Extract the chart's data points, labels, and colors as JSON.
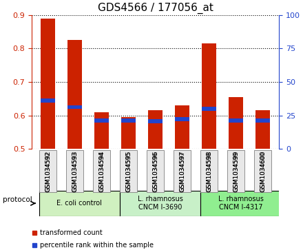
{
  "title": "GDS4566 / 177056_at",
  "samples": [
    "GSM1034592",
    "GSM1034593",
    "GSM1034594",
    "GSM1034595",
    "GSM1034596",
    "GSM1034597",
    "GSM1034598",
    "GSM1034599",
    "GSM1034600"
  ],
  "red_top": [
    0.89,
    0.825,
    0.61,
    0.595,
    0.615,
    0.63,
    0.815,
    0.655,
    0.615
  ],
  "blue_val": [
    0.645,
    0.625,
    0.585,
    0.585,
    0.583,
    0.59,
    0.62,
    0.585,
    0.585
  ],
  "bar_bottom": 0.5,
  "ylim": [
    0.5,
    0.9
  ],
  "yticks": [
    0.5,
    0.6,
    0.7,
    0.8,
    0.9
  ],
  "right_yticks": [
    0,
    25,
    50,
    75,
    100
  ],
  "right_ylim": [
    0,
    100
  ],
  "red_color": "#CC2200",
  "blue_color": "#2244CC",
  "title_fontsize": 11,
  "axis_label_fontsize": 8,
  "tick_fontsize": 8,
  "groups": [
    {
      "label": "E. coli control",
      "start": 0,
      "end": 3,
      "color": "#d0f0c0"
    },
    {
      "label": "L. rhamnosus\nCNCM I-3690",
      "start": 3,
      "end": 6,
      "color": "#c8f0c8"
    },
    {
      "label": "L. rhamnosus\nCNCM I-4317",
      "start": 6,
      "end": 9,
      "color": "#90ee90"
    }
  ],
  "protocol_label": "protocol",
  "legend_items": [
    {
      "color": "#CC2200",
      "label": "transformed count"
    },
    {
      "color": "#2244CC",
      "label": "percentile rank within the sample"
    }
  ],
  "bg_color": "#f0f0f0",
  "spine_color": "#000000"
}
